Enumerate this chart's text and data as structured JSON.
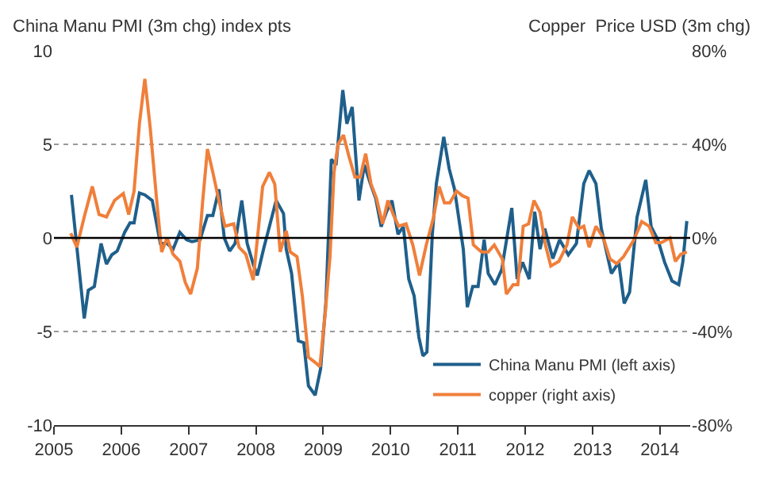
{
  "chart_data": {
    "type": "line",
    "ylabel": "China Manu PMI (3m chg) index pts",
    "y2label": "Copper  Price USD (3m chg)",
    "xlim": [
      2005,
      2014.45
    ],
    "xticks": [
      2005,
      2006,
      2007,
      2008,
      2009,
      2010,
      2011,
      2012,
      2013,
      2014
    ],
    "ylim": [
      -10,
      10
    ],
    "yticks": [
      -10,
      -5,
      0,
      5,
      10
    ],
    "y2lim": [
      -80,
      80
    ],
    "y2ticks": [
      {
        "value": -80,
        "label": "-80%"
      },
      {
        "value": -40,
        "label": "-40%"
      },
      {
        "value": 0,
        "label": "0%"
      },
      {
        "value": 40,
        "label": "40%"
      },
      {
        "value": 80,
        "label": "80%"
      }
    ],
    "grid": "y",
    "legend": "bottom right",
    "line_style": "solid",
    "marker": "none",
    "ref_lines": [
      {
        "axis": "y",
        "value": 0,
        "color": "#000000"
      }
    ],
    "series": [
      {
        "name": "China Manu PMI (left axis)",
        "color": "#1f5f8b",
        "x": [
          2005.26,
          2005.45,
          2005.51,
          2005.6,
          2005.7,
          2005.78,
          2005.86,
          2005.94,
          2006.05,
          2006.13,
          2006.19,
          2006.27,
          2006.35,
          2006.46,
          2006.58,
          2006.68,
          2006.77,
          2006.87,
          2006.97,
          2007.05,
          2007.17,
          2007.28,
          2007.36,
          2007.45,
          2007.53,
          2007.61,
          2007.69,
          2007.79,
          2007.87,
          2007.96,
          2008.02,
          2008.12,
          2008.2,
          2008.3,
          2008.41,
          2008.45,
          2008.53,
          2008.63,
          2008.71,
          2008.78,
          2008.88,
          2008.96,
          2009.04,
          2009.12,
          2009.19,
          2009.29,
          2009.35,
          2009.43,
          2009.53,
          2009.61,
          2009.7,
          2009.78,
          2009.86,
          2009.94,
          2010.02,
          2010.11,
          2010.19,
          2010.27,
          2010.35,
          2010.42,
          2010.48,
          2010.54,
          2010.62,
          2010.68,
          2010.79,
          2010.87,
          2010.95,
          2011.08,
          2011.14,
          2011.22,
          2011.3,
          2011.39,
          2011.45,
          2011.55,
          2011.65,
          2011.8,
          2011.88,
          2011.96,
          2012.06,
          2012.14,
          2012.22,
          2012.29,
          2012.41,
          2012.51,
          2012.64,
          2012.76,
          2012.87,
          2012.95,
          2013.05,
          2013.13,
          2013.28,
          2013.39,
          2013.47,
          2013.55,
          2013.66,
          2013.79,
          2013.87,
          2013.97,
          2014.07,
          2014.18,
          2014.28,
          2014.34,
          2014.4
        ],
        "values": [
          2.3,
          -4.3,
          -2.8,
          -2.6,
          -0.3,
          -1.4,
          -0.9,
          -0.7,
          0.3,
          0.8,
          0.8,
          2.4,
          2.3,
          2.0,
          -0.3,
          -0.3,
          -0.6,
          0.3,
          -0.1,
          -0.2,
          -0.1,
          1.2,
          1.2,
          2.6,
          0,
          -0.7,
          -0.3,
          2.0,
          -0.3,
          -1.4,
          -2.0,
          -0.5,
          0.6,
          2.0,
          1.3,
          -0.6,
          -1.9,
          -5.5,
          -5.6,
          -7.9,
          -8.4,
          -7.0,
          -3.4,
          4.2,
          3.9,
          7.9,
          6.1,
          7.0,
          2.0,
          3.9,
          2.9,
          2.1,
          0.6,
          1.4,
          2.0,
          0.2,
          0.6,
          -2.2,
          -3.1,
          -5.3,
          -6.3,
          -6.1,
          0.2,
          2.9,
          5.4,
          3.7,
          2.6,
          -0.6,
          -3.7,
          -2.6,
          -2.6,
          -0.1,
          -1.9,
          -2.5,
          -1.7,
          1.6,
          -2.2,
          -1.3,
          -2.2,
          1.4,
          -0.6,
          0.5,
          -1.1,
          -0.1,
          -0.9,
          -0.3,
          2.9,
          3.6,
          2.9,
          0.5,
          -1.9,
          -1.3,
          -3.5,
          -2.9,
          1.1,
          3.1,
          0.6,
          -0.1,
          -1.3,
          -2.3,
          -2.5,
          -1.3,
          0.9
        ]
      },
      {
        "name": "copper (right axis)",
        "color": "#f07f3a",
        "axis": "y2",
        "x": [
          2005.25,
          2005.34,
          2005.45,
          2005.57,
          2005.67,
          2005.78,
          2005.9,
          2006.03,
          2006.11,
          2006.19,
          2006.27,
          2006.35,
          2006.43,
          2006.52,
          2006.6,
          2006.68,
          2006.77,
          2006.87,
          2006.95,
          2007.03,
          2007.13,
          2007.21,
          2007.28,
          2007.36,
          2007.45,
          2007.54,
          2007.67,
          2007.75,
          2007.85,
          2007.96,
          2008.1,
          2008.2,
          2008.28,
          2008.36,
          2008.45,
          2008.51,
          2008.61,
          2008.69,
          2008.78,
          2008.87,
          2008.95,
          2009.03,
          2009.1,
          2009.16,
          2009.22,
          2009.3,
          2009.38,
          2009.47,
          2009.55,
          2009.63,
          2009.71,
          2009.79,
          2009.88,
          2009.96,
          2010.04,
          2010.12,
          2010.23,
          2010.33,
          2010.43,
          2010.53,
          2010.64,
          2010.72,
          2010.8,
          2010.88,
          2010.98,
          2011.07,
          2011.15,
          2011.23,
          2011.35,
          2011.45,
          2011.54,
          2011.66,
          2011.72,
          2011.82,
          2011.89,
          2011.97,
          2012.05,
          2012.13,
          2012.22,
          2012.3,
          2012.38,
          2012.5,
          2012.62,
          2012.7,
          2012.8,
          2012.87,
          2012.95,
          2013.05,
          2013.16,
          2013.26,
          2013.36,
          2013.46,
          2013.61,
          2013.73,
          2013.84,
          2013.94,
          2014.02,
          2014.15,
          2014.23,
          2014.31,
          2014.4
        ],
        "values": [
          2,
          -4,
          9,
          22,
          10,
          9,
          16,
          19,
          10,
          20,
          49,
          68,
          47,
          18,
          -6,
          0,
          -7,
          -10,
          -19,
          -24,
          -13,
          16,
          38,
          28,
          16,
          5,
          6,
          -4,
          -7,
          -18,
          22,
          28,
          23,
          -6,
          3,
          -6,
          -8,
          -25,
          -51,
          -53,
          -55,
          -32,
          -8,
          28,
          40,
          44,
          35,
          26,
          26,
          36,
          23,
          17,
          6,
          16,
          10,
          5,
          6,
          -3,
          -16,
          -3,
          9,
          22,
          15,
          15,
          20,
          18,
          17,
          -3,
          -6,
          -6,
          -3,
          -9,
          -24,
          -20,
          -20,
          5,
          6,
          16,
          11,
          -3,
          -12,
          -10,
          -3,
          9,
          4,
          5,
          -4,
          5,
          0,
          -9,
          -11,
          -8,
          -1,
          7,
          5,
          -2,
          -2,
          0,
          -10,
          -7,
          -6
        ]
      }
    ]
  }
}
